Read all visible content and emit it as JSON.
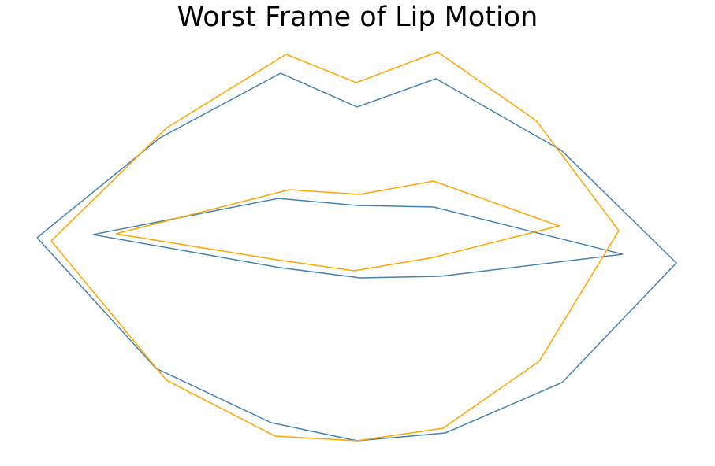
{
  "chart_data": {
    "type": "line",
    "title": "Worst Frame of Lip Motion",
    "xlabel": "",
    "ylabel": "",
    "axes_visible": false,
    "grid": false,
    "legend": "none",
    "xlim": [
      47,
      858
    ],
    "ylim": [
      -560,
      -66
    ],
    "series": [
      {
        "color": "#4682b4",
        "outer_lip": [
          [
            47,
            -302
          ],
          [
            203,
            -175
          ],
          [
            356,
            -93
          ],
          [
            453,
            -136
          ],
          [
            553,
            -100
          ],
          [
            712,
            -191
          ],
          [
            858,
            -334
          ],
          [
            713,
            -486
          ],
          [
            565,
            -550
          ],
          [
            453,
            -560
          ],
          [
            344,
            -537
          ],
          [
            198,
            -468
          ],
          [
            47,
            -302
          ]
        ],
        "inner_lip": [
          [
            118,
            -298
          ],
          [
            353,
            -252
          ],
          [
            453,
            -261
          ],
          [
            550,
            -263
          ],
          [
            790,
            -323
          ],
          [
            558,
            -351
          ],
          [
            457,
            -353
          ],
          [
            355,
            -340
          ],
          [
            118,
            -298
          ]
        ]
      },
      {
        "color": "#ffa500",
        "outer_lip": [
          [
            65,
            -306
          ],
          [
            212,
            -162
          ],
          [
            363,
            -69
          ],
          [
            452,
            -105
          ],
          [
            555,
            -66
          ],
          [
            680,
            -153
          ],
          [
            785,
            -293
          ],
          [
            684,
            -459
          ],
          [
            562,
            -544
          ],
          [
            453,
            -560
          ],
          [
            349,
            -554
          ],
          [
            211,
            -483
          ],
          [
            65,
            -306
          ]
        ],
        "inner_lip": [
          [
            147,
            -297
          ],
          [
            367,
            -241
          ],
          [
            456,
            -247
          ],
          [
            550,
            -230
          ],
          [
            709,
            -287
          ],
          [
            550,
            -327
          ],
          [
            449,
            -344
          ],
          [
            351,
            -330
          ],
          [
            147,
            -297
          ]
        ]
      }
    ]
  }
}
